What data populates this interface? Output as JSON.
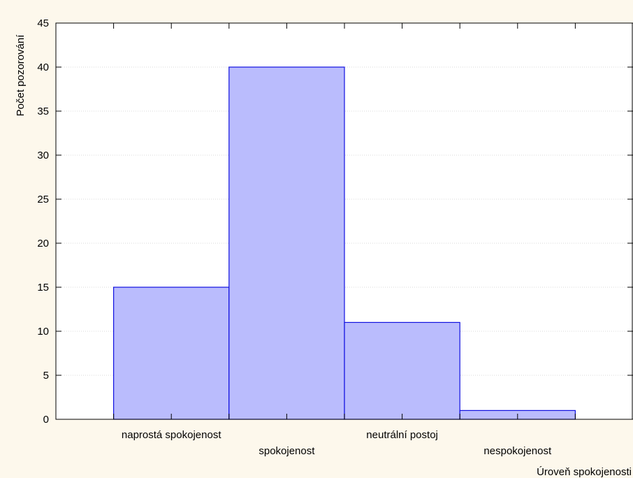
{
  "chart_data": {
    "type": "bar",
    "title": "",
    "xlabel": "Úroveň spokojenosti",
    "ylabel": "Počet pozorování",
    "categories": [
      "naprostá spokojenost",
      "spokojenost",
      "neutrální postoj",
      "nespokojenost"
    ],
    "values": [
      15,
      40,
      11,
      1
    ],
    "ylim": [
      0,
      45
    ],
    "yticks": [
      "0",
      "5",
      "10",
      "15",
      "20",
      "25",
      "30",
      "35",
      "40",
      "45"
    ],
    "grid": true,
    "legend": "none"
  },
  "colors": {
    "background": "#fdf8ec",
    "plot_area": "#ffffff",
    "bar_fill": "#babcfd",
    "bar_stroke": "#1010e0",
    "gridline": "#d9d9d9",
    "axis": "#000000"
  }
}
